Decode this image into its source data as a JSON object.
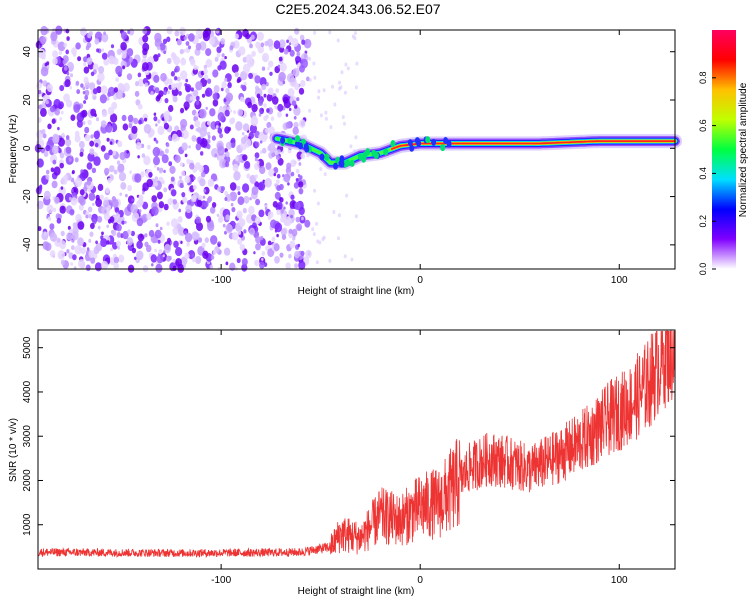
{
  "title": "C2E5.2024.343.06.52.E07",
  "chart_data": [
    {
      "type": "heatmap",
      "xlabel": "Height of straight line (km)",
      "ylabel": "Frequency (Hz)",
      "xlim": [
        -192,
        128
      ],
      "ylim": [
        -50,
        49
      ],
      "x_ticks": [
        -100,
        0,
        100
      ],
      "y_ticks": [
        -40,
        -20,
        0,
        20,
        40
      ],
      "colorbar": {
        "label": "Normalized spectral amplitude",
        "range": [
          0,
          1
        ],
        "ticks": [
          "0.0",
          "0.2",
          "0.4",
          "0.6",
          "0.8"
        ],
        "stops": [
          "#ffffff",
          "#8000ff",
          "#0000ff",
          "#00e0ff",
          "#00ff40",
          "#c0ff00",
          "#ffc000",
          "#ff0000",
          "#ff0060"
        ]
      },
      "description_segments": {
        "noise_region_x": [
          -192,
          -56
        ],
        "signal_track": [
          {
            "x": -72,
            "f": 4
          },
          {
            "x": -60,
            "f": 2
          },
          {
            "x": -50,
            "f": -2
          },
          {
            "x": -45,
            "f": -6
          },
          {
            "x": -38,
            "f": -6
          },
          {
            "x": -30,
            "f": -3
          },
          {
            "x": -20,
            "f": -2
          },
          {
            "x": -10,
            "f": 1
          },
          {
            "x": 0,
            "f": 2
          },
          {
            "x": 20,
            "f": 2
          },
          {
            "x": 60,
            "f": 2
          },
          {
            "x": 90,
            "f": 3
          },
          {
            "x": 128,
            "f": 3
          }
        ]
      }
    },
    {
      "type": "line",
      "xlabel": "Height of straight line (km)",
      "ylabel": "SNR (10 * v/v)",
      "xlim": [
        -192,
        128
      ],
      "ylim": [
        0,
        5400
      ],
      "x_ticks": [
        -100,
        0,
        100
      ],
      "y_ticks": [
        1000,
        2000,
        3000,
        4000,
        5000
      ],
      "color": "#ee3333",
      "series": [
        {
          "trend": [
            {
              "x": -192,
              "y": 380
            },
            {
              "x": -120,
              "y": 360
            },
            {
              "x": -80,
              "y": 370
            },
            {
              "x": -60,
              "y": 380
            },
            {
              "x": -45,
              "y": 500
            },
            {
              "x": -40,
              "y": 800
            },
            {
              "x": -30,
              "y": 700
            },
            {
              "x": -20,
              "y": 1200
            },
            {
              "x": -10,
              "y": 1100
            },
            {
              "x": 0,
              "y": 1400
            },
            {
              "x": 10,
              "y": 1500
            },
            {
              "x": 20,
              "y": 2000
            },
            {
              "x": 25,
              "y": 2300
            },
            {
              "x": 35,
              "y": 2500
            },
            {
              "x": 45,
              "y": 2400
            },
            {
              "x": 55,
              "y": 2250
            },
            {
              "x": 65,
              "y": 2450
            },
            {
              "x": 75,
              "y": 2700
            },
            {
              "x": 85,
              "y": 3000
            },
            {
              "x": 95,
              "y": 3400
            },
            {
              "x": 105,
              "y": 3700
            },
            {
              "x": 115,
              "y": 4200
            },
            {
              "x": 122,
              "y": 4800
            },
            {
              "x": 128,
              "y": 5000
            }
          ]
        }
      ]
    }
  ]
}
